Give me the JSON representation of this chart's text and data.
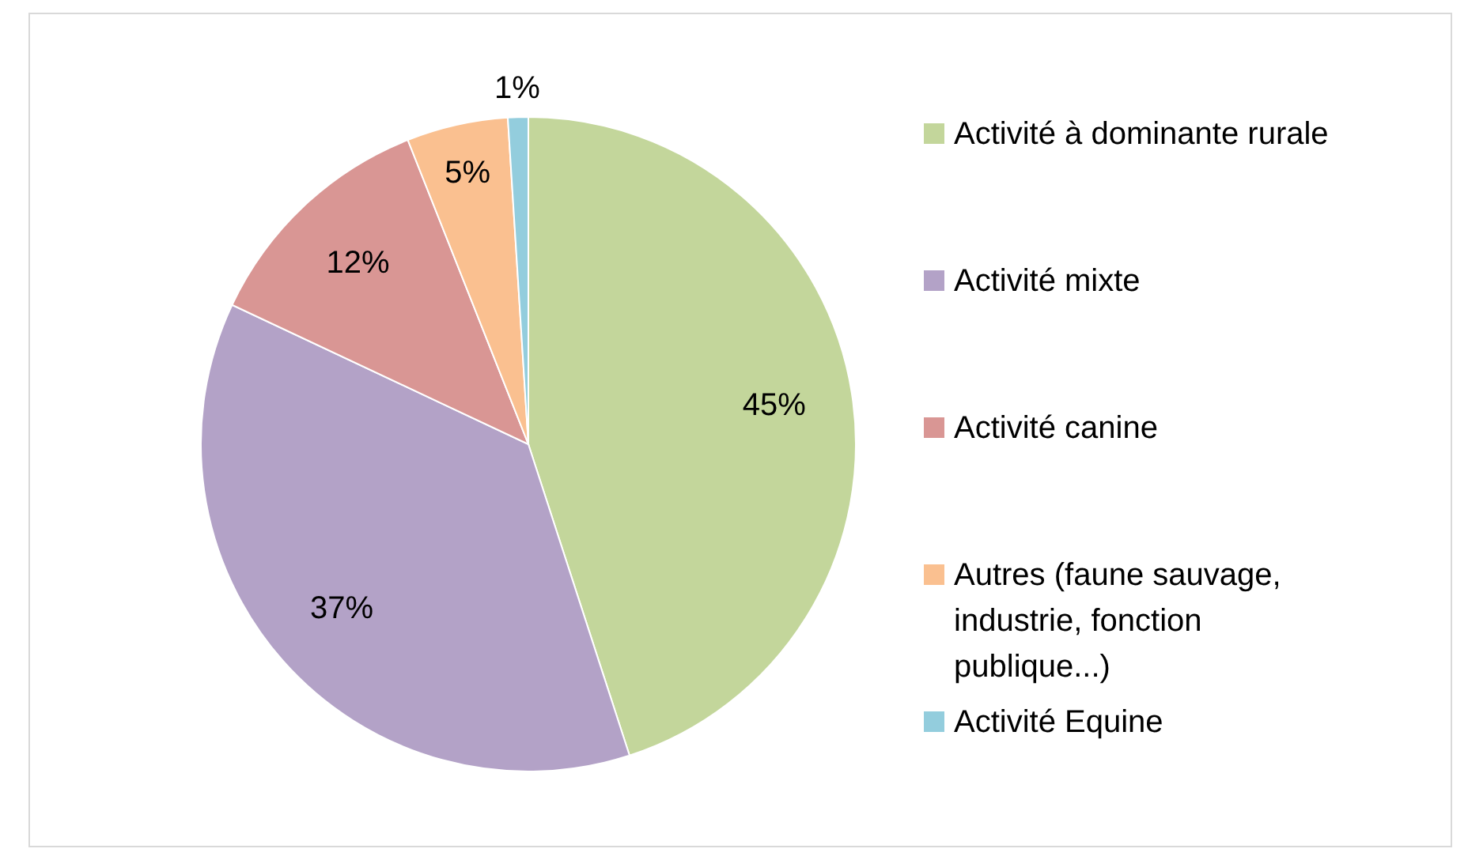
{
  "chart_data": {
    "type": "pie",
    "categories": [
      "Activité à dominante rurale",
      "Activité mixte",
      "Activité canine",
      "Autres (faune sauvage, industrie, fonction publique...)",
      "Activité Equine"
    ],
    "values": [
      45,
      37,
      12,
      5,
      1
    ],
    "colors": [
      "#c3d69b",
      "#b3a2c7",
      "#d99694",
      "#fac090",
      "#93cddd"
    ],
    "value_labels": [
      "45%",
      "37%",
      "12%",
      "5%",
      "1%"
    ],
    "legend": "right"
  }
}
